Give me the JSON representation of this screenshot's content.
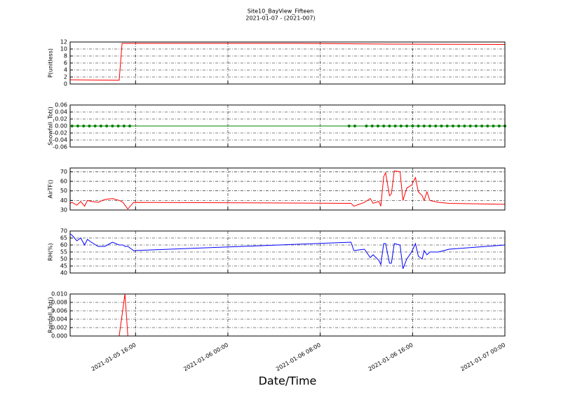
{
  "chart_data": [
    {
      "type": "line",
      "title": "Site10_BayView_Fifteen",
      "subtitle": "2021-01-07 - (2021-007)",
      "ylabel": "P(unitless)",
      "color": "#ff0000",
      "x": [
        "2021-01-05 10:20",
        "2021-01-05 14:35",
        "2021-01-05 14:50",
        "2021-01-06 06:00",
        "2021-01-06 14:00",
        "2021-01-07 00:00"
      ],
      "values": [
        1.2,
        1.1,
        11.6,
        11.6,
        11.4,
        11.3
      ],
      "ylim": [
        0,
        12
      ],
      "yticks": [
        0,
        2,
        4,
        6,
        8,
        10,
        12
      ],
      "grid": true
    },
    {
      "type": "line",
      "ylabel": "Snowfall_Tot()",
      "color": "#008000",
      "markers": true,
      "x": [
        "2021-01-05 10:30",
        "2021-01-05 11:00",
        "2021-01-05 11:30",
        "2021-01-05 12:00",
        "2021-01-05 12:30",
        "2021-01-05 13:00",
        "2021-01-05 13:30",
        "2021-01-05 14:00",
        "2021-01-05 14:30",
        "2021-01-05 15:00",
        "2021-01-05 15:30",
        "2021-01-06 10:30",
        "2021-01-06 11:00",
        "2021-01-06 12:00",
        "2021-01-06 12:30",
        "2021-01-06 13:00",
        "2021-01-06 13:30",
        "2021-01-06 14:00",
        "2021-01-06 14:30",
        "2021-01-06 15:00",
        "2021-01-06 15:30",
        "2021-01-06 16:00",
        "2021-01-06 16:30",
        "2021-01-06 17:00",
        "2021-01-06 17:30",
        "2021-01-06 18:00",
        "2021-01-06 18:30",
        "2021-01-06 19:00",
        "2021-01-06 19:30",
        "2021-01-06 20:00",
        "2021-01-06 20:30",
        "2021-01-06 21:00",
        "2021-01-06 21:30",
        "2021-01-06 22:00",
        "2021-01-06 22:30",
        "2021-01-06 23:00",
        "2021-01-06 23:30",
        "2021-01-07 00:00"
      ],
      "values": [
        0,
        0,
        0,
        0,
        0,
        0,
        0,
        0,
        0,
        0,
        0,
        0,
        0,
        0,
        0,
        0,
        0,
        0,
        0,
        0,
        0,
        0,
        0,
        0,
        0,
        0,
        0,
        0,
        0,
        0,
        0,
        0,
        0,
        0,
        0,
        0,
        0,
        0
      ],
      "ylim": [
        -0.06,
        0.06
      ],
      "yticks": [
        -0.06,
        -0.04,
        -0.02,
        {
          "value": 0,
          "label": "0.00"
        },
        0.02,
        0.04,
        0.06
      ],
      "grid": true
    },
    {
      "type": "line",
      "ylabel": "AirTF()",
      "color": "#ff0000",
      "x": [
        "2021-01-05 10:20",
        "2021-01-05 10:30",
        "2021-01-05 10:55",
        "2021-01-05 11:15",
        "2021-01-05 11:35",
        "2021-01-05 11:50",
        "2021-01-05 12:10",
        "2021-01-05 12:45",
        "2021-01-05 13:20",
        "2021-01-05 14:00",
        "2021-01-05 14:35",
        "2021-01-05 14:55",
        "2021-01-05 15:05",
        "2021-01-05 15:20",
        "2021-01-05 15:50",
        "2021-01-06 10:40",
        "2021-01-06 10:55",
        "2021-01-06 11:50",
        "2021-01-06 12:20",
        "2021-01-06 12:35",
        "2021-01-06 13:05",
        "2021-01-06 13:15",
        "2021-01-06 13:30",
        "2021-01-06 13:40",
        "2021-01-06 14:00",
        "2021-01-06 14:10",
        "2021-01-06 14:25",
        "2021-01-06 14:55",
        "2021-01-06 15:10",
        "2021-01-06 15:30",
        "2021-01-06 15:55",
        "2021-01-06 16:15",
        "2021-01-06 16:30",
        "2021-01-06 16:50",
        "2021-01-06 17:00",
        "2021-01-06 17:15",
        "2021-01-06 17:30",
        "2021-01-06 18:15",
        "2021-01-06 19:10",
        "2021-01-07 00:00"
      ],
      "values": [
        37,
        38,
        35,
        39,
        34,
        40,
        39,
        38,
        41,
        42,
        40,
        38,
        35,
        31,
        38,
        37,
        34,
        38,
        42,
        37,
        39,
        34,
        65,
        69,
        45,
        47,
        71,
        70,
        40,
        53,
        56,
        64,
        49,
        45,
        40,
        49,
        40,
        38,
        37,
        36
      ],
      "ylim": [
        30,
        74
      ],
      "yticks": [
        30,
        40,
        50,
        60,
        70
      ],
      "grid": true
    },
    {
      "type": "line",
      "ylabel": "RH(%)",
      "color": "#0000ff",
      "x": [
        "2021-01-05 10:20",
        "2021-01-05 10:30",
        "2021-01-05 10:55",
        "2021-01-05 11:15",
        "2021-01-05 11:35",
        "2021-01-05 11:50",
        "2021-01-05 12:10",
        "2021-01-05 12:45",
        "2021-01-05 13:20",
        "2021-01-05 14:00",
        "2021-01-05 14:35",
        "2021-01-05 14:55",
        "2021-01-05 15:05",
        "2021-01-05 15:20",
        "2021-01-05 15:50",
        "2021-01-06 10:40",
        "2021-01-06 10:55",
        "2021-01-06 11:50",
        "2021-01-06 12:20",
        "2021-01-06 12:35",
        "2021-01-06 13:05",
        "2021-01-06 13:15",
        "2021-01-06 13:30",
        "2021-01-06 13:40",
        "2021-01-06 14:00",
        "2021-01-06 14:10",
        "2021-01-06 14:25",
        "2021-01-06 14:55",
        "2021-01-06 15:10",
        "2021-01-06 15:30",
        "2021-01-06 15:55",
        "2021-01-06 16:15",
        "2021-01-06 16:30",
        "2021-01-06 16:50",
        "2021-01-06 17:00",
        "2021-01-06 17:15",
        "2021-01-06 17:30",
        "2021-01-06 18:15",
        "2021-01-06 19:10",
        "2021-01-07 00:00"
      ],
      "values": [
        68,
        67,
        63,
        65,
        60,
        64,
        62,
        59,
        59,
        62,
        60,
        60,
        59,
        59,
        56,
        62,
        56,
        57,
        51,
        53,
        49,
        46,
        61,
        61,
        47,
        47,
        61,
        60,
        43,
        50,
        55,
        61,
        52,
        50,
        56,
        53,
        55,
        55,
        57,
        60
      ],
      "ylim": [
        40,
        70
      ],
      "yticks": [
        40,
        45,
        50,
        55,
        60,
        65,
        70
      ],
      "grid": true
    },
    {
      "type": "line",
      "ylabel": "Rainfall_Tot()",
      "color": "#ff0000",
      "xlabel": "Date/Time",
      "x": [
        "2021-01-05 10:20",
        "2021-01-05 14:35",
        "2021-01-05 15:05",
        "2021-01-05 15:20",
        "2021-01-07 00:00"
      ],
      "values": [
        0,
        0,
        0.01,
        0,
        0
      ],
      "ylim": [
        0,
        0.01
      ],
      "yticks": [
        {
          "value": 0,
          "label": "0.000"
        },
        0.002,
        0.004,
        0.006,
        0.008,
        {
          "value": 0.01,
          "label": "0.010"
        }
      ],
      "grid": true,
      "xlim": [
        "2021-01-05 10:20",
        "2021-01-07 00:00"
      ],
      "xticks": [
        "2021-01-05 16:00",
        "2021-01-06 00:00",
        "2021-01-06 08:00",
        "2021-01-06 16:00",
        "2021-01-07 00:00"
      ]
    }
  ]
}
